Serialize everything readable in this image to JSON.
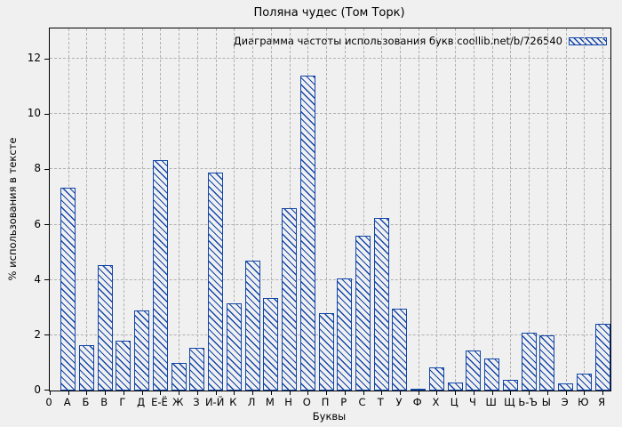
{
  "chart_data": {
    "type": "bar",
    "title": "Поляна чудес (Том Торк)",
    "legend_label": "Диаграмма частоты использования букв coollib.net/b/726540",
    "legend_position": "top-right",
    "xlabel": "Буквы",
    "ylabel": "% использования в тексте",
    "origin_label": "0",
    "ylim": [
      0,
      13.1
    ],
    "yticks": [
      0,
      2,
      4,
      6,
      8,
      10,
      12
    ],
    "grid": true,
    "categories": [
      "А",
      "Б",
      "В",
      "Г",
      "Д",
      "Е-Ё",
      "Ж",
      "З",
      "И-Й",
      "К",
      "Л",
      "М",
      "Н",
      "О",
      "П",
      "Р",
      "С",
      "Т",
      "У",
      "Ф",
      "Х",
      "Ц",
      "Ч",
      "Ш",
      "Щ",
      "Ь-Ъ",
      "Ы",
      "Э",
      "Ю",
      "Я"
    ],
    "values": [
      7.35,
      1.65,
      4.55,
      1.8,
      2.9,
      8.35,
      1.0,
      1.55,
      7.9,
      3.15,
      4.7,
      3.35,
      6.6,
      11.4,
      2.8,
      4.05,
      5.6,
      6.25,
      2.95,
      0.05,
      0.85,
      0.3,
      1.45,
      1.15,
      0.4,
      2.1,
      2.0,
      0.25,
      0.6,
      2.4
    ],
    "colors": {
      "bar": "#1245a8",
      "background": "#f0f0f0",
      "grid": "#b0b0b0",
      "axis": "#000000"
    }
  }
}
